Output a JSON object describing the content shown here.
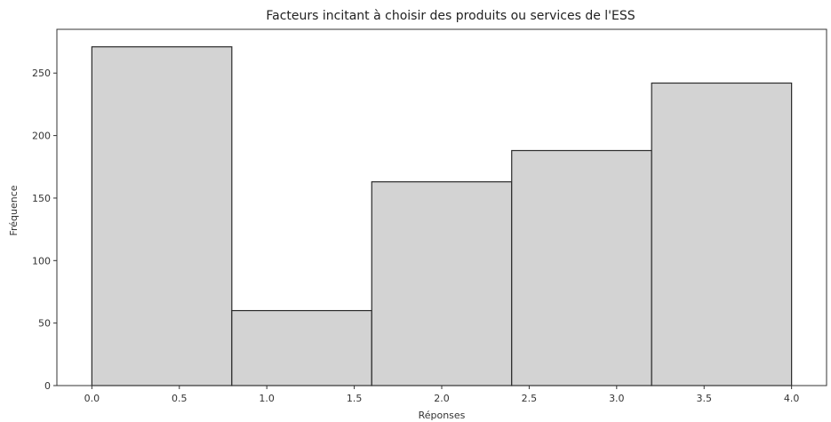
{
  "chart_data": {
    "type": "bar",
    "title": "Facteurs incitant à choisir des produits ou services de l'ESS",
    "xlabel": "Réponses",
    "ylabel": "Fréquence",
    "bins": [
      {
        "x0": 0.0,
        "x1": 0.8,
        "value": 271
      },
      {
        "x0": 0.8,
        "x1": 1.6,
        "value": 60
      },
      {
        "x0": 1.6,
        "x1": 2.4,
        "value": 163
      },
      {
        "x0": 2.4,
        "x1": 3.2,
        "value": 188
      },
      {
        "x0": 3.2,
        "x1": 4.0,
        "value": 242
      }
    ],
    "xlim": [
      -0.2,
      4.2
    ],
    "ylim": [
      0,
      285
    ],
    "xticks": [
      0.0,
      0.5,
      1.0,
      1.5,
      2.0,
      2.5,
      3.0,
      3.5,
      4.0
    ],
    "xtick_labels": [
      "0.0",
      "0.5",
      "1.0",
      "1.5",
      "2.0",
      "2.5",
      "3.0",
      "3.5",
      "4.0"
    ],
    "yticks": [
      0,
      50,
      100,
      150,
      200,
      250
    ],
    "ytick_labels": [
      "0",
      "50",
      "100",
      "150",
      "200",
      "250"
    ],
    "grid": false,
    "colors": {
      "bar_fill": "#d3d3d3",
      "bar_edge": "#2b2b2b",
      "axis": "#333333"
    }
  }
}
